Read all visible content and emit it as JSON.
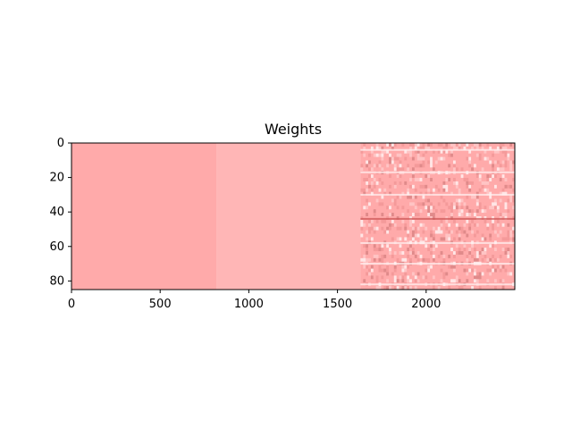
{
  "chart_data": {
    "type": "heatmap",
    "title": "Weights",
    "xlabel": "",
    "ylabel": "",
    "x_range": [
      0,
      2500
    ],
    "y_range": [
      0,
      85
    ],
    "y_inverted": true,
    "x_ticks": [
      0,
      500,
      1000,
      1500,
      2000
    ],
    "y_ticks": [
      0,
      20,
      40,
      60,
      80
    ],
    "x_tick_labels": [
      "0",
      "500",
      "1000",
      "1500",
      "2000"
    ],
    "y_tick_labels": [
      "0",
      "20",
      "40",
      "60",
      "80"
    ],
    "grid": false,
    "colorbar": false,
    "colors": {
      "base": "#ffaaaa",
      "light_band": "#ffb6b6",
      "highlight": "#fff0f0",
      "dark": "#cc5555"
    },
    "column_regions": [
      {
        "x_start": 0,
        "x_end": 820,
        "level": "base"
      },
      {
        "x_start": 820,
        "x_end": 1630,
        "level": "light_band"
      },
      {
        "x_start": 1630,
        "x_end": 2500,
        "level": "mixed"
      }
    ],
    "row_bands": [
      {
        "y": 4,
        "x_start": 1630,
        "x_end": 2500,
        "level": "highlight"
      },
      {
        "y": 17,
        "x_start": 1630,
        "x_end": 2500,
        "level": "highlight"
      },
      {
        "y": 30,
        "x_start": 1630,
        "x_end": 2500,
        "level": "highlight"
      },
      {
        "y": 44,
        "x_start": 1630,
        "x_end": 2500,
        "level": "dark"
      },
      {
        "y": 58,
        "x_start": 1630,
        "x_end": 2500,
        "level": "highlight"
      },
      {
        "y": 70,
        "x_start": 1630,
        "x_end": 2500,
        "level": "highlight"
      },
      {
        "y": 82,
        "x_start": 1630,
        "x_end": 2500,
        "level": "highlight"
      }
    ]
  }
}
